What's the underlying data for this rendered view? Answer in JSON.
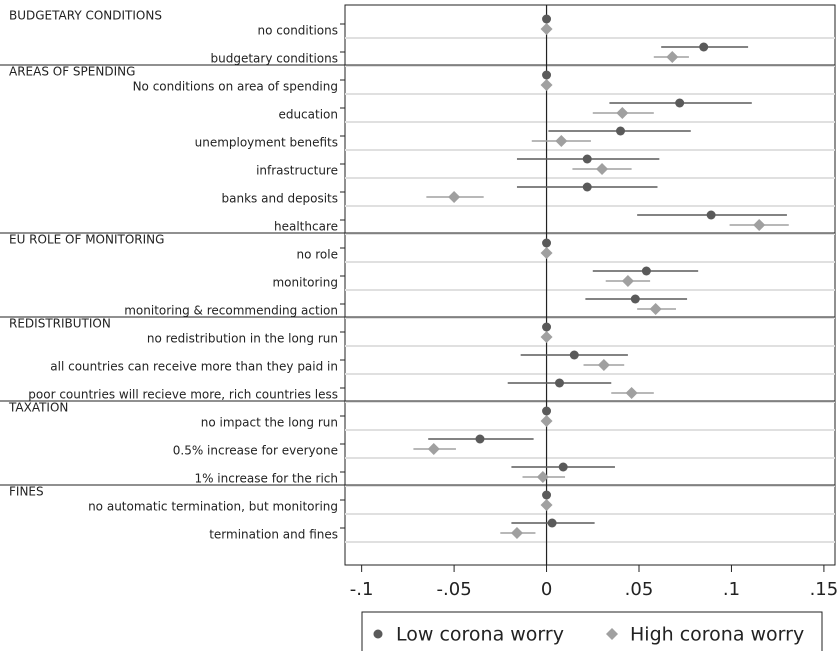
{
  "chart_data": {
    "type": "coefplot",
    "groups": [
      {
        "title": "BUDGETARY CONDITIONS",
        "categories": [
          "no conditions",
          "budgetary conditions"
        ]
      },
      {
        "title": "AREAS OF SPENDING",
        "categories": [
          "No conditions on area of spending",
          "education",
          "unemployment benefits",
          "infrastructure",
          "banks and deposits",
          "healthcare"
        ]
      },
      {
        "title": "EU ROLE OF MONITORING",
        "categories": [
          "no role",
          "monitoring",
          "monitoring & recommending action"
        ]
      },
      {
        "title": "REDISTRIBUTION",
        "categories": [
          "no redistribution in the long run",
          "all countries can receive more than they paid in",
          "poor countries will recieve more, rich countries less"
        ]
      },
      {
        "title": "TAXATION",
        "categories": [
          "no impact the long run",
          "0.5% increase for everyone",
          "1% increase for the rich"
        ]
      },
      {
        "title": "FINES",
        "categories": [
          "no automatic termination, but monitoring",
          "termination and fines"
        ]
      }
    ],
    "series": [
      {
        "name": "Low corona worry",
        "color": "#5a5a5a",
        "marker": "circle",
        "values": [
          0,
          0.085,
          0,
          0.072,
          0.04,
          0.022,
          0.022,
          0.089,
          0,
          0.054,
          0.048,
          0,
          0.015,
          0.007,
          0,
          -0.036,
          0.009,
          0,
          0.003
        ],
        "ci_low": [
          null,
          0.062,
          null,
          0.034,
          0.001,
          -0.016,
          -0.016,
          0.049,
          null,
          0.025,
          0.021,
          null,
          -0.014,
          -0.021,
          null,
          -0.064,
          -0.019,
          null,
          -0.019
        ],
        "ci_high": [
          null,
          0.109,
          null,
          0.111,
          0.078,
          0.061,
          0.06,
          0.13,
          null,
          0.082,
          0.076,
          null,
          0.044,
          0.035,
          null,
          -0.007,
          0.037,
          null,
          0.026
        ]
      },
      {
        "name": "High corona worry",
        "color": "#a0a0a0",
        "marker": "diamond",
        "values": [
          0,
          0.068,
          0,
          0.041,
          0.008,
          0.03,
          -0.05,
          0.115,
          0,
          0.044,
          0.059,
          0,
          0.031,
          0.046,
          0,
          -0.061,
          -0.002,
          0,
          -0.016
        ],
        "ci_low": [
          null,
          0.058,
          null,
          0.025,
          -0.008,
          0.014,
          -0.065,
          0.099,
          null,
          0.032,
          0.049,
          null,
          0.02,
          0.035,
          null,
          -0.072,
          -0.013,
          null,
          -0.025
        ],
        "ci_high": [
          null,
          0.077,
          null,
          0.058,
          0.024,
          0.046,
          -0.034,
          0.131,
          null,
          0.056,
          0.07,
          null,
          0.042,
          0.058,
          null,
          -0.049,
          0.01,
          null,
          -0.006
        ]
      }
    ],
    "xlim": [
      -0.109,
      0.156
    ],
    "xticks": [
      {
        "value": -0.1,
        "label": "-.1"
      },
      {
        "value": -0.05,
        "label": "-.05"
      },
      0,
      {
        "value": 0.05,
        "label": ".05"
      },
      {
        "value": 0.1,
        "label": ".1"
      },
      {
        "value": 0.15,
        "label": ".15"
      }
    ],
    "legend": "bottom"
  }
}
